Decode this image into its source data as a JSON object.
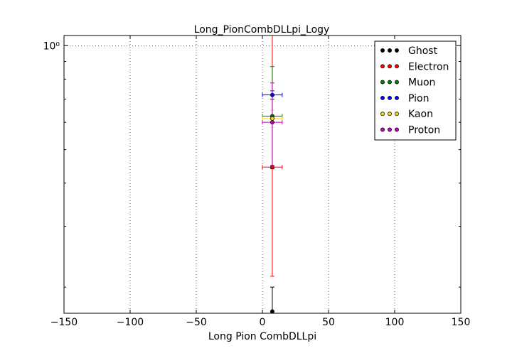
{
  "chart_data": {
    "type": "scatter",
    "title": "Long_PionCombDLLpi_Logy",
    "xlabel": "Long Pion CombDLLpi",
    "ylabel": "",
    "xlim": [
      -150,
      150
    ],
    "ylim": [
      0.168,
      1.07
    ],
    "yscale": "log",
    "grid": true,
    "legend_placement": "top-right",
    "x_ticks": [
      -150,
      -100,
      -50,
      0,
      50,
      100,
      150
    ],
    "x_tick_labels": [
      "−150",
      "−100",
      "−50",
      "0",
      "50",
      "100",
      "150"
    ],
    "y_ticks": [
      1.0
    ],
    "y_tick_labels": [
      "10⁰"
    ],
    "series": [
      {
        "name": "Ghost",
        "color": "#000000",
        "x": 7.5,
        "y": 0.17,
        "xerr": 0,
        "yerr_low": 0.17,
        "yerr_high": 0.2
      },
      {
        "name": "Electron",
        "color": "#ff0000",
        "x": 7.5,
        "y": 0.445,
        "xerr": 7.5,
        "yerr_low": 0.215,
        "yerr_high": 1.07
      },
      {
        "name": "Muon",
        "color": "#008000",
        "x": 7.5,
        "y": 0.625,
        "xerr": 7.5,
        "yerr_low": 0.44,
        "yerr_high": 0.87
      },
      {
        "name": "Pion",
        "color": "#0000ff",
        "x": 7.5,
        "y": 0.72,
        "xerr": 7.5,
        "yerr_low": 0.7,
        "yerr_high": 0.74
      },
      {
        "name": "Kaon",
        "color": "#ffd700",
        "x": 7.5,
        "y": 0.615,
        "xerr": 7.5,
        "yerr_low": 0.58,
        "yerr_high": 0.65
      },
      {
        "name": "Proton",
        "color": "#bf00bf",
        "x": 7.5,
        "y": 0.6,
        "xerr": 7.5,
        "yerr_low": 0.45,
        "yerr_high": 0.78
      }
    ]
  }
}
